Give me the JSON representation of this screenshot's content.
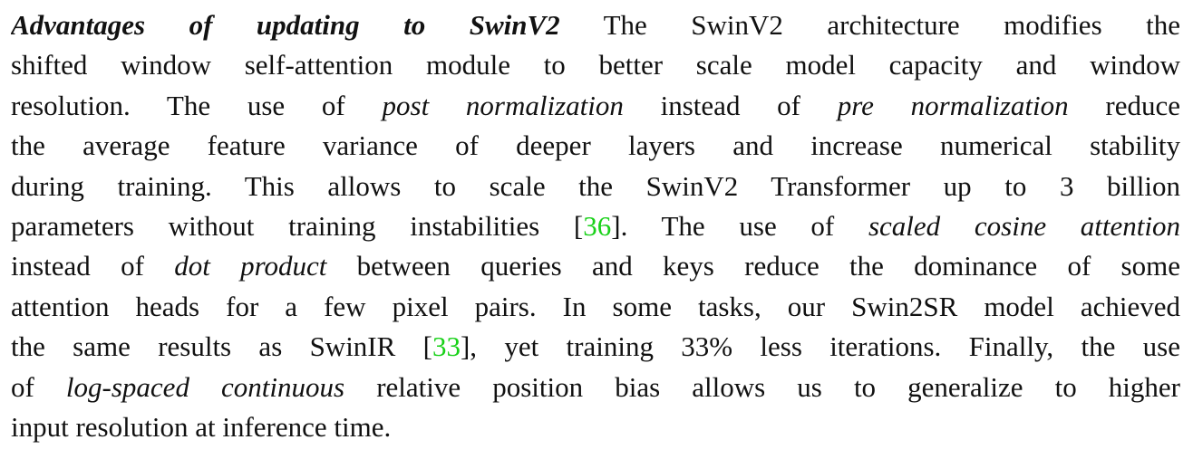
{
  "lines": [
    [
      "Advantages of updating to SwinV2",
      " The SwinV2 architecture modifies the"
    ],
    [
      "shifted window self-attention module to better scale model capacity and window"
    ],
    [
      "resolution. The use of ",
      "post normalization",
      " instead of ",
      "pre normalization",
      " reduce"
    ],
    [
      "the average feature variance of deeper layers and increase numerical stability"
    ],
    [
      "during training. This allows to scale the SwinV2 Transformer up to 3 billion"
    ],
    [
      "parameters without training instabilities [",
      "36",
      "]. The use of ",
      "scaled cosine attention"
    ],
    [
      "instead of ",
      "dot product",
      " between queries and keys reduce the dominance of some"
    ],
    [
      "attention heads for a few pixel pairs. In some tasks, our Swin2SR model achieved"
    ],
    [
      "the same results as SwinIR [",
      "33",
      "], yet training 33% less iterations. Finally, the use"
    ],
    [
      "of ",
      "log-spaced continuous",
      " relative position bias allows us to generalize to higher"
    ],
    [
      "input resolution at inference time."
    ]
  ]
}
